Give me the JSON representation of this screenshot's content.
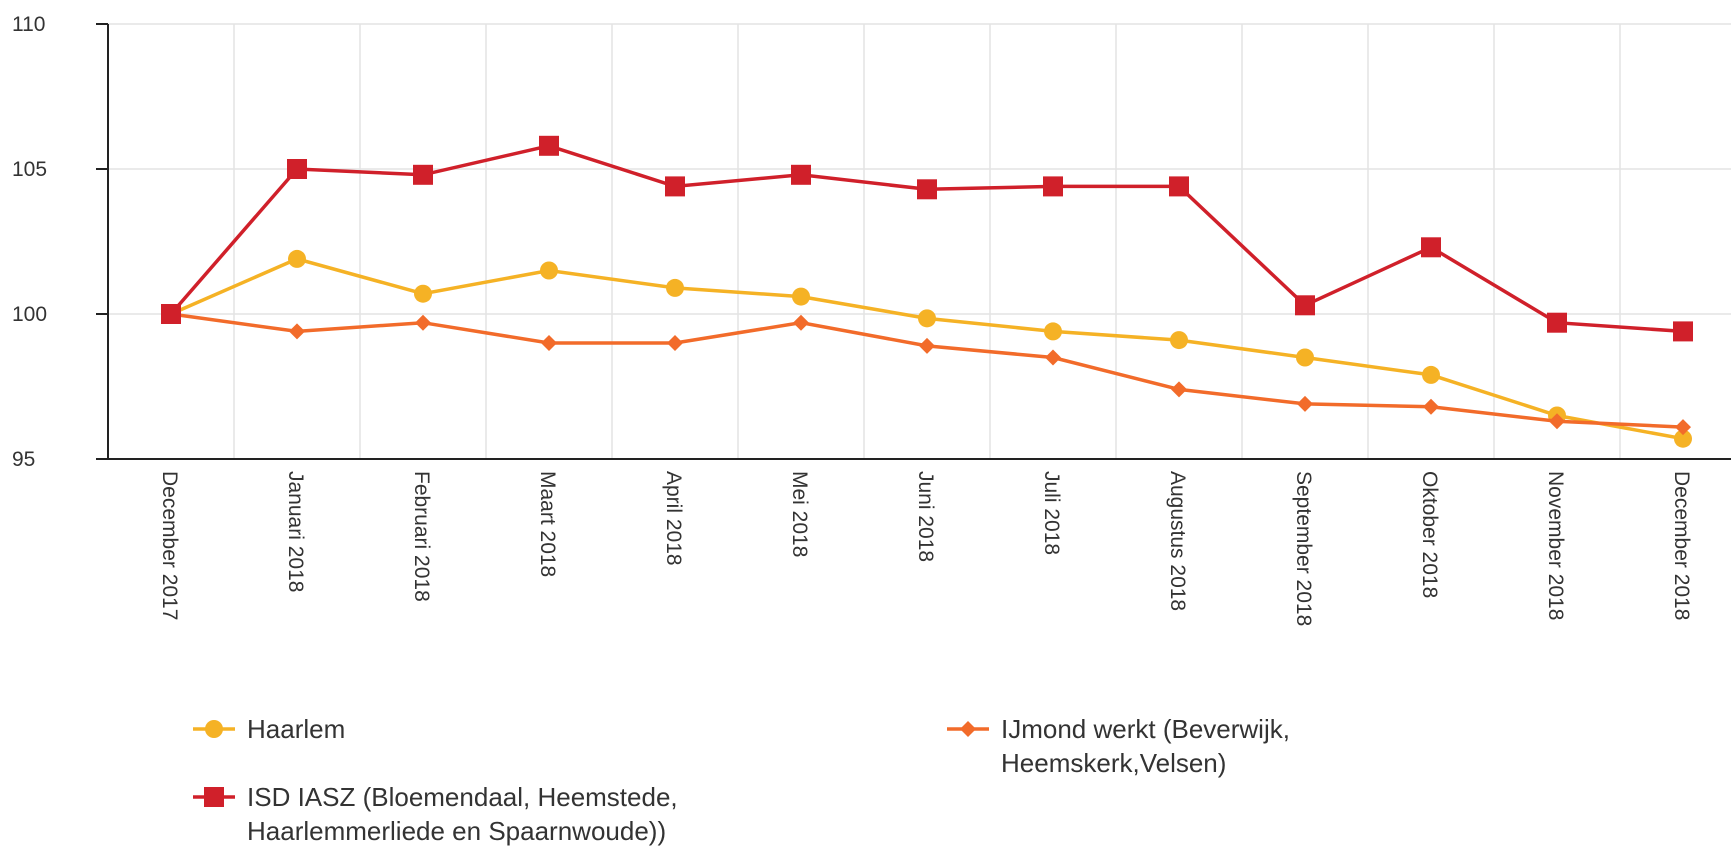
{
  "chart_data": {
    "type": "line",
    "categories": [
      "December 2017",
      "Januari 2018",
      "Februari 2018",
      "Maart 2018",
      "April 2018",
      "Mei 2018",
      "Juni 2018",
      "Juli 2018",
      "Augustus 2018",
      "September 2018",
      "Oktober 2018",
      "November 2018",
      "December 2018"
    ],
    "series": [
      {
        "name": "Haarlem",
        "color": "#f5b225",
        "marker": "circle",
        "values": [
          100,
          101.9,
          100.7,
          101.5,
          100.9,
          100.6,
          99.85,
          99.4,
          99.1,
          98.5,
          97.9,
          96.5,
          95.7
        ]
      },
      {
        "name": "IJmond werkt (Beverwijk, Heemskerk,Velsen)",
        "color": "#f26b2a",
        "marker": "diamond",
        "values": [
          100,
          99.4,
          99.7,
          99.0,
          99.0,
          99.7,
          98.9,
          98.5,
          97.4,
          96.9,
          96.8,
          96.3,
          96.1
        ]
      },
      {
        "name": "ISD IASZ (Bloemendaal, Heemstede, Haarlemmerliede en Spaarnwoude))",
        "color": "#d0202a",
        "marker": "square",
        "values": [
          100,
          105.0,
          104.8,
          105.8,
          104.4,
          104.8,
          104.3,
          104.4,
          104.4,
          100.3,
          102.3,
          99.7,
          99.4
        ]
      }
    ],
    "ylim": [
      95,
      110
    ],
    "yticks": [
      95,
      100,
      105,
      110
    ],
    "grid": true
  }
}
